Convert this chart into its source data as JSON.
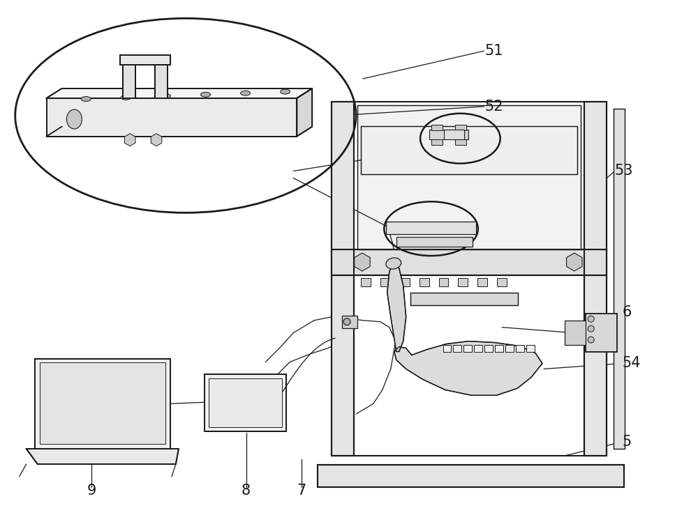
{
  "bg_color": "#ffffff",
  "line_color": "#1a1a1a",
  "figsize": [
    10.0,
    7.62
  ],
  "dpi": 100,
  "lw_main": 1.3,
  "lw_thin": 0.9,
  "lw_frame": 1.5
}
